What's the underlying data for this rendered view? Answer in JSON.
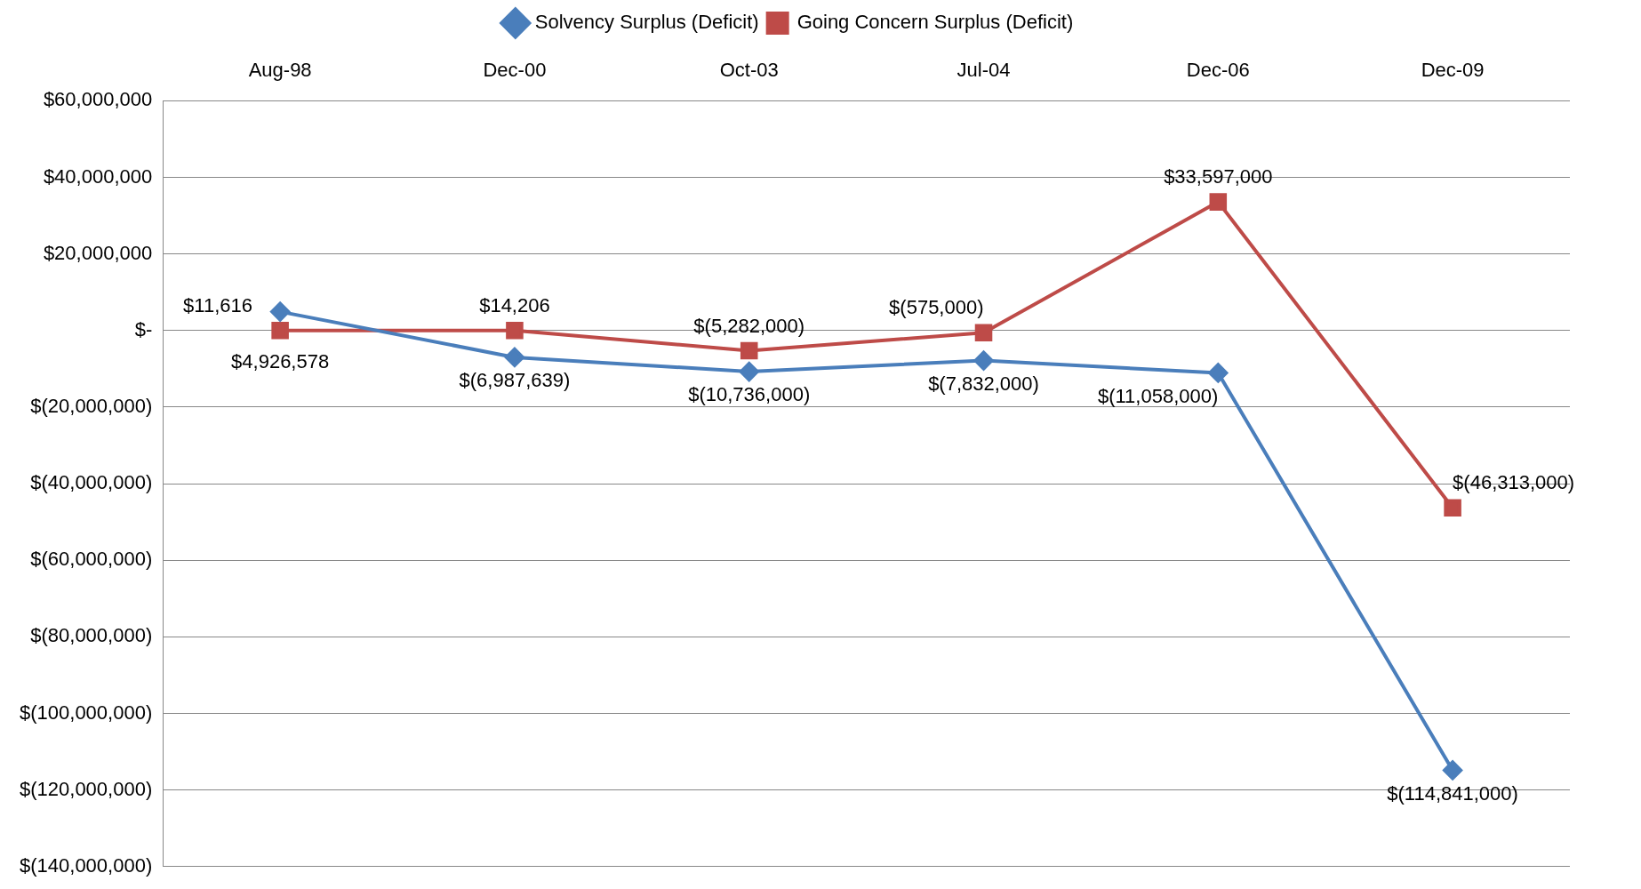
{
  "chart_data": {
    "type": "line",
    "categories": [
      "Aug-98",
      "Dec-00",
      "Oct-03",
      "Jul-04",
      "Dec-06",
      "Dec-09"
    ],
    "series": [
      {
        "name": "Solvency Surplus (Deficit)",
        "color": "#4a7ebb",
        "marker": "diamond",
        "values": [
          4926578,
          -6987639,
          -10736000,
          -7832000,
          -11058000,
          -114841000
        ],
        "value_labels": [
          "$4,926,578",
          "$(6,987,639)",
          "$(10,736,000)",
          "$(7,832,000)",
          "$(11,058,000)",
          "$(114,841,000)"
        ]
      },
      {
        "name": "Going Concern Surplus (Deficit)",
        "color": "#be4b48",
        "marker": "square",
        "values": [
          11616,
          14206,
          -5282000,
          -575000,
          33597000,
          -46313000
        ],
        "value_labels": [
          "$11,616",
          "$14,206",
          "$(5,282,000)",
          "$(575,000)",
          "$33,597,000",
          "$(46,313,000)"
        ]
      }
    ],
    "ylim": [
      -140000000,
      60000000
    ],
    "yticks": [
      {
        "value": 60000000,
        "label": "$60,000,000"
      },
      {
        "value": 40000000,
        "label": "$40,000,000"
      },
      {
        "value": 20000000,
        "label": "$20,000,000"
      },
      {
        "value": 0,
        "label": "$-"
      },
      {
        "value": -20000000,
        "label": "$(20,000,000)"
      },
      {
        "value": -40000000,
        "label": "$(40,000,000)"
      },
      {
        "value": -60000000,
        "label": "$(60,000,000)"
      },
      {
        "value": -80000000,
        "label": "$(80,000,000)"
      },
      {
        "value": -100000000,
        "label": "$(100,000,000)"
      },
      {
        "value": -120000000,
        "label": "$(120,000,000)"
      },
      {
        "value": -140000000,
        "label": "$(140,000,000)"
      }
    ],
    "grid": "y",
    "legend": "top",
    "line_style": "solid"
  }
}
